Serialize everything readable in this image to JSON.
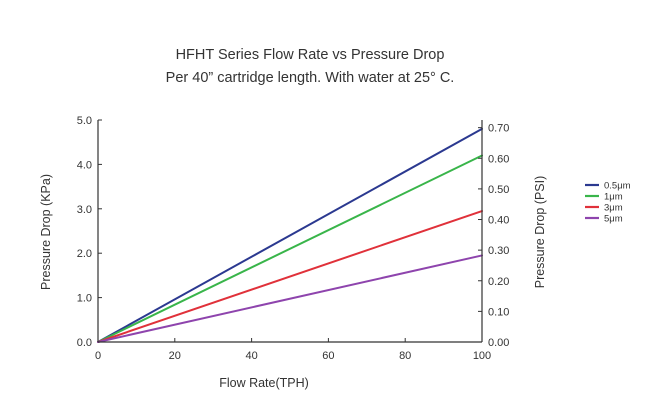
{
  "chart_data": {
    "type": "line",
    "title": "HFHT Series Flow Rate vs Pressure Drop",
    "subtitle": "Per 40”   cartridge length. With water at 25° C.",
    "xlabel": "Flow Rate(TPH)",
    "ylabel": "Pressure Drop (KPa)",
    "ylabel_right": "Pressure Drop (PSI)",
    "xlim": [
      0,
      100
    ],
    "ylim": [
      0,
      5.0
    ],
    "ylim_right": [
      0,
      0.725
    ],
    "x_ticks": [
      "0",
      "20",
      "40",
      "60",
      "80",
      "100"
    ],
    "y_ticks": [
      "0.0",
      "1.0",
      "2.0",
      "3.0",
      "4.0",
      "5.0"
    ],
    "y_ticks_right": [
      "0.00",
      "0.10",
      "0.20",
      "0.30",
      "0.40",
      "0.50",
      "0.60",
      "0.70"
    ],
    "grid": false,
    "legend_position": "right",
    "x": [
      0,
      100
    ],
    "series": [
      {
        "name": "0.5μm",
        "color": "#2b3990",
        "values": [
          0,
          4.8
        ]
      },
      {
        "name": "1μm",
        "color": "#39b54a",
        "values": [
          0,
          4.2
        ]
      },
      {
        "name": "3μm",
        "color": "#e0313a",
        "values": [
          0,
          2.95
        ]
      },
      {
        "name": "5μm",
        "color": "#8e44ad",
        "values": [
          0,
          1.95
        ]
      }
    ]
  }
}
